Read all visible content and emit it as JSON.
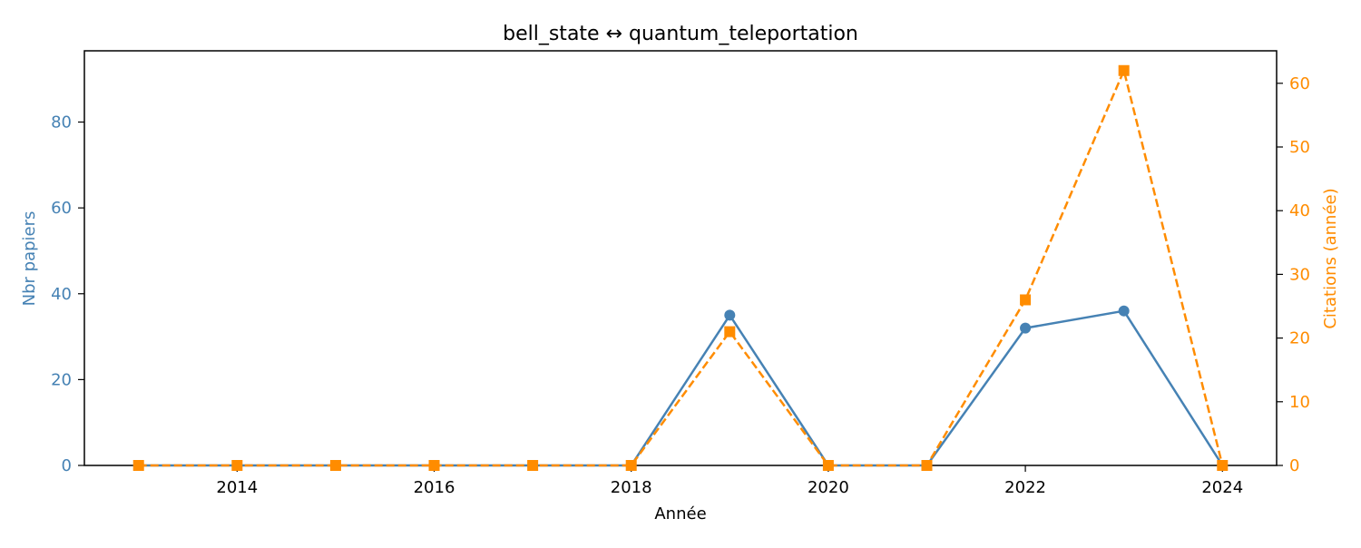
{
  "chart_data": {
    "type": "line",
    "title": "bell_state  ↔  quantum_teleportation",
    "xlabel": "Année",
    "ylabel_left": "Nbr papiers",
    "ylabel_right": "Citations (année)",
    "x": [
      2013,
      2014,
      2015,
      2016,
      2017,
      2018,
      2019,
      2020,
      2021,
      2022,
      2023,
      2024
    ],
    "xlim": [
      2012.45,
      2024.55
    ],
    "x_ticks": [
      2014,
      2016,
      2018,
      2020,
      2022,
      2024
    ],
    "left_axis": {
      "ylim": [
        0,
        96.6
      ],
      "ticks": [
        0,
        20,
        40,
        60,
        80
      ],
      "color": "#4682b4"
    },
    "right_axis": {
      "ylim": [
        0,
        65.1
      ],
      "ticks": [
        0,
        10,
        20,
        30,
        40,
        50,
        60
      ],
      "color": "#ff8c00"
    },
    "grid": false,
    "series": [
      {
        "axis": "left",
        "values": [
          0,
          0,
          0,
          0,
          0,
          0,
          35,
          0,
          0,
          32,
          36,
          0
        ],
        "color": "#4682b4",
        "line_style": "solid",
        "marker": "circle"
      },
      {
        "axis": "right",
        "values": [
          0,
          0,
          0,
          0,
          0,
          0,
          21,
          0,
          0,
          26,
          62,
          0
        ],
        "color": "#ff8c00",
        "line_style": "dashed",
        "marker": "square"
      }
    ]
  }
}
